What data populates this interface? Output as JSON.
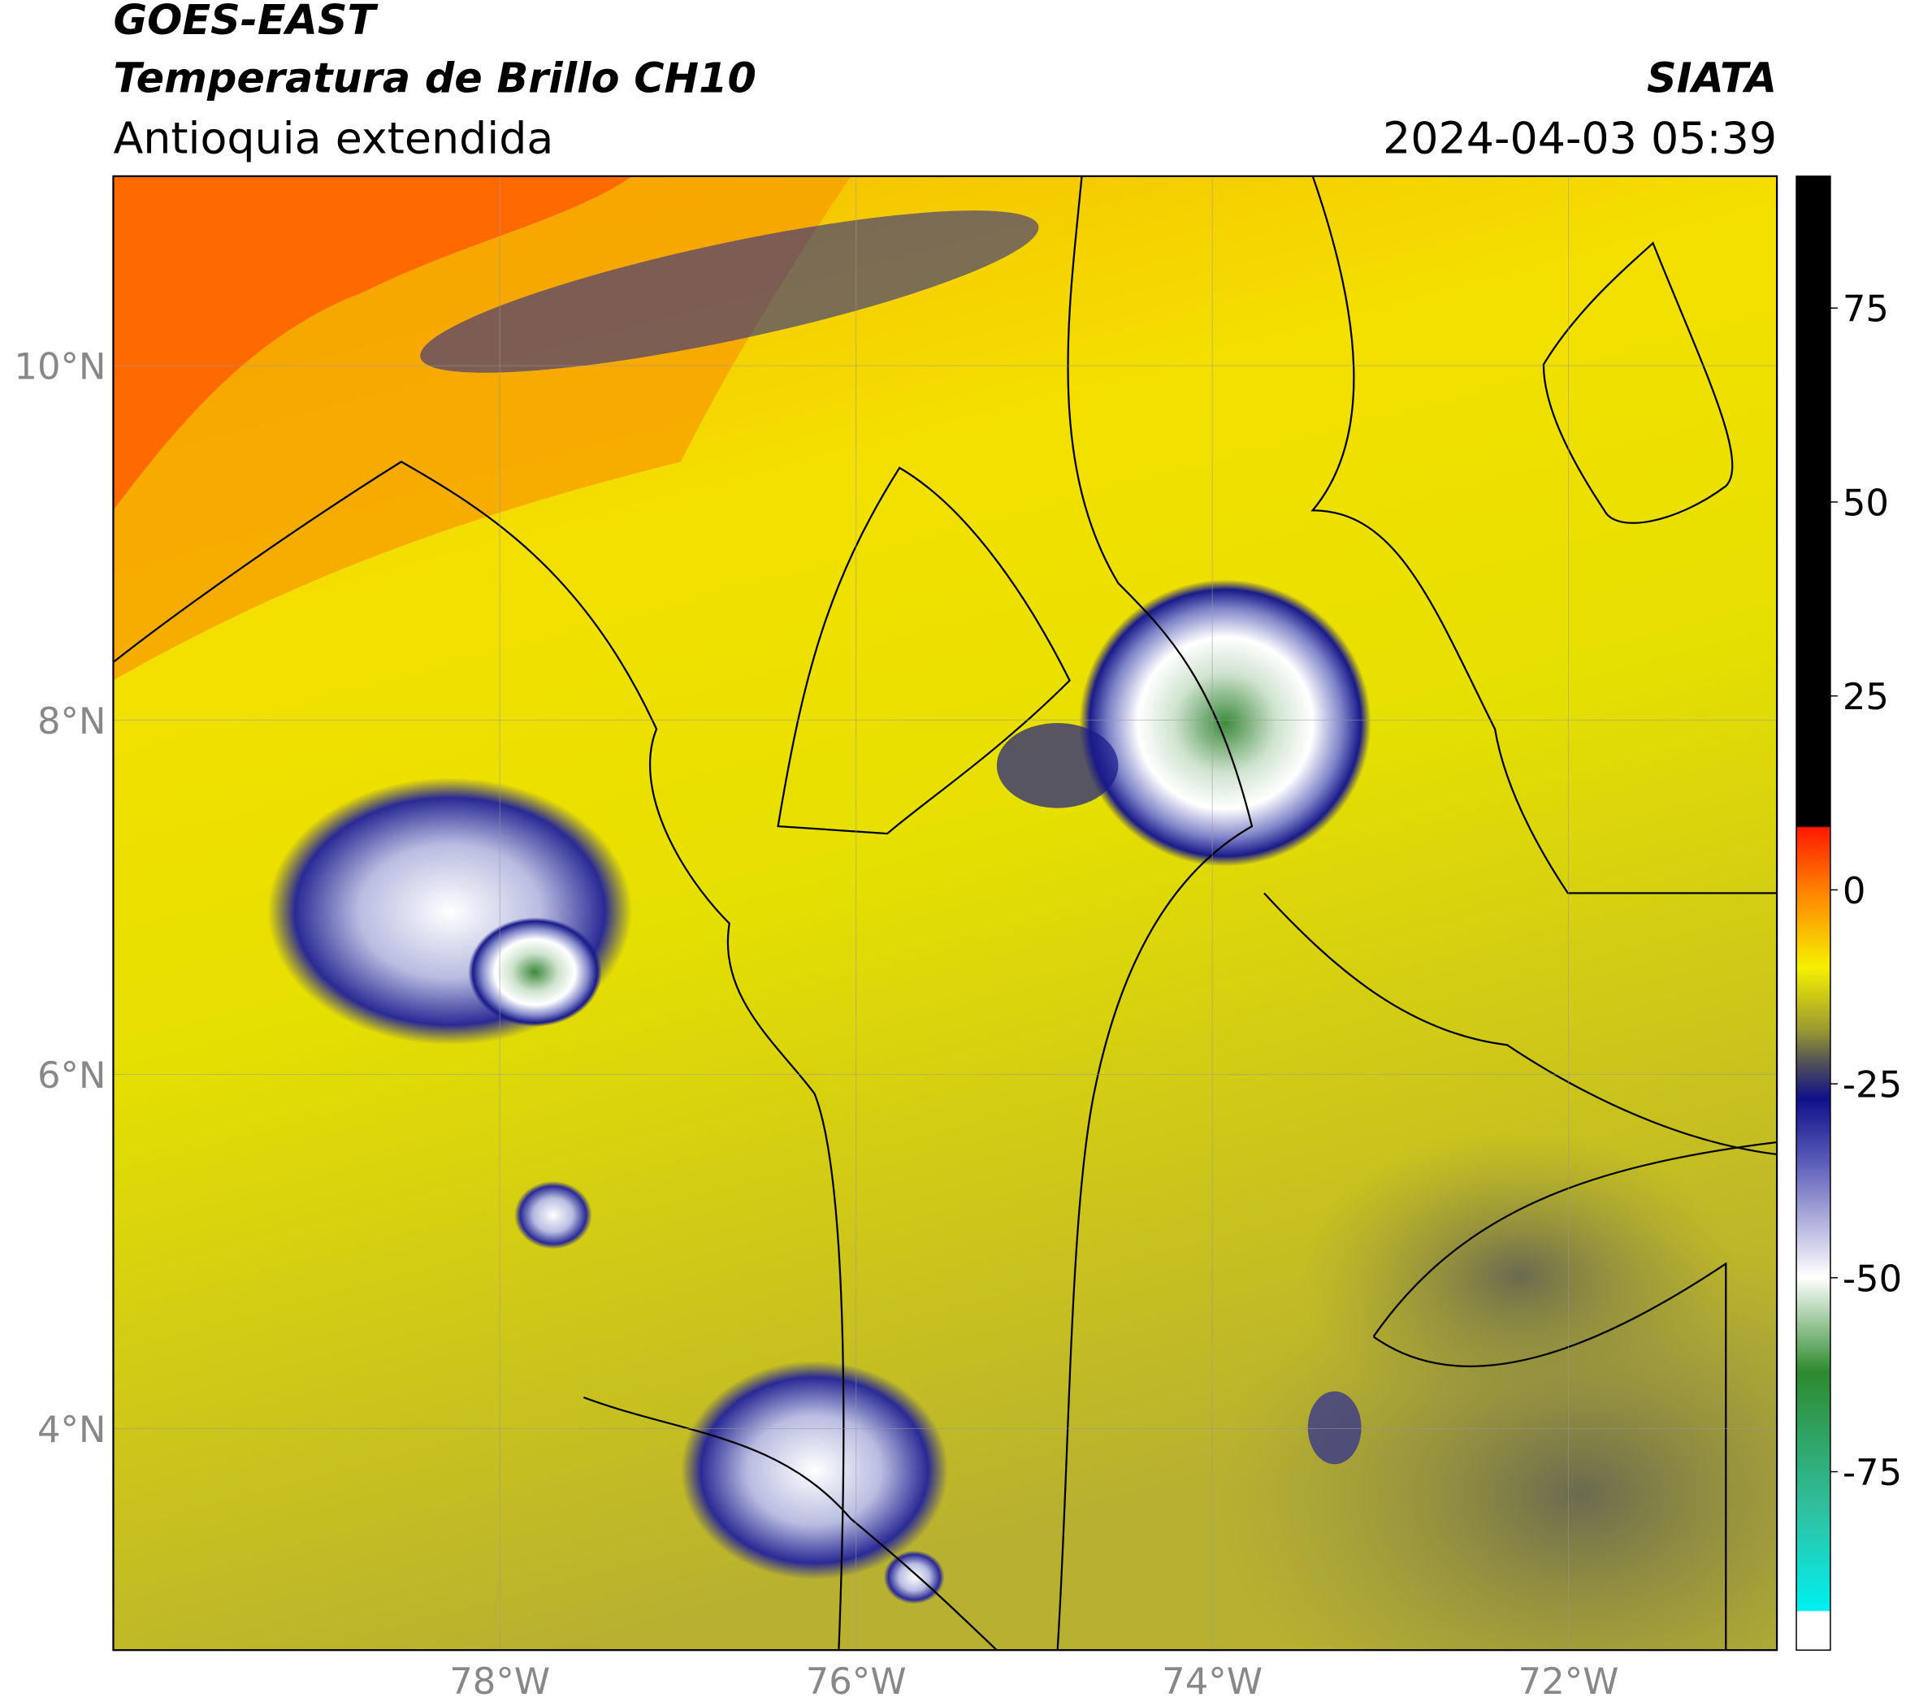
{
  "header": {
    "title": "GOES-EAST",
    "subtitle": "Temperatura de Brillo CH10",
    "region": "Antioquia extendida",
    "source": "SIATA",
    "datetime": "2024-04-03 05:39"
  },
  "map": {
    "lat_range": [
      2.75,
      11.07
    ],
    "lon_range": [
      -80.17,
      -70.83
    ],
    "lat_ticks": [
      {
        "value": 10,
        "label": "10°N"
      },
      {
        "value": 8,
        "label": "8°N"
      },
      {
        "value": 6,
        "label": "6°N"
      },
      {
        "value": 4,
        "label": "4°N"
      }
    ],
    "lon_ticks": [
      {
        "value": -78,
        "label": "78°W"
      },
      {
        "value": -76,
        "label": "76°W"
      },
      {
        "value": -74,
        "label": "74°W"
      },
      {
        "value": -72,
        "label": "72°W"
      }
    ]
  },
  "colorbar": {
    "range": [
      -98,
      92
    ],
    "ticks": [
      75,
      50,
      25,
      0,
      -25,
      -50,
      -75
    ]
  }
}
